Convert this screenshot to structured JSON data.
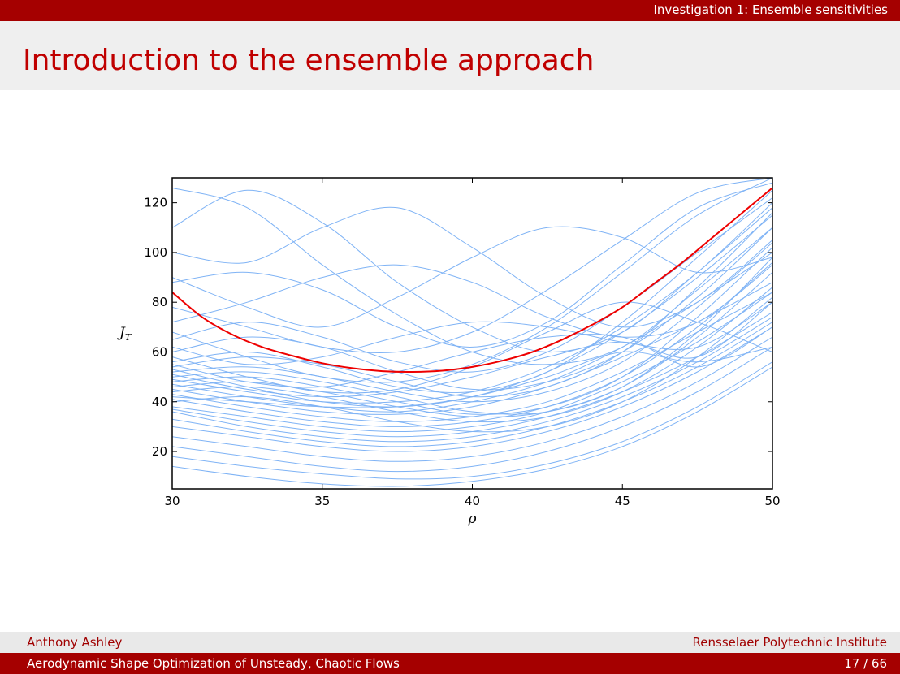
{
  "header": {
    "section": "Investigation 1: Ensemble sensitivities"
  },
  "slide": {
    "title": "Introduction to the ensemble approach"
  },
  "footer": {
    "author": "Anthony Ashley",
    "institution": "Rensselaer Polytechnic Institute",
    "talk_title": "Aerodynamic Shape Optimization of Unsteady, Chaotic Flows",
    "page": "17 / 66"
  },
  "colors": {
    "bar": "#a50000",
    "title": "#c00000",
    "ensemble": "#7fb3f5",
    "mean": "#ee0000"
  },
  "chart_data": {
    "type": "line",
    "xlabel": "ρ",
    "ylabel": "J_T",
    "xlim": [
      30,
      50
    ],
    "ylim": [
      5,
      130
    ],
    "xticks": [
      30,
      35,
      40,
      45,
      50
    ],
    "yticks": [
      20,
      40,
      60,
      80,
      100,
      120
    ],
    "grid": false,
    "series": [
      {
        "role": "ensemble-mean",
        "color": "#ee0000",
        "x": [
          30,
          31,
          32,
          33,
          34,
          35,
          36,
          37,
          38,
          39,
          40,
          41,
          42,
          43,
          44,
          45,
          46,
          47,
          48,
          49,
          50
        ],
        "y": [
          84,
          74,
          67,
          62,
          58.5,
          55.5,
          53.5,
          52.3,
          52,
          52.5,
          54,
          56.5,
          60,
          65,
          71,
          78,
          87,
          96,
          106,
          116,
          126
        ]
      }
    ],
    "ensemble": {
      "color": "#7fb3f5",
      "x": [
        30,
        32.5,
        35,
        37.5,
        40,
        42.5,
        45,
        47.5,
        50
      ],
      "members": [
        [
          126,
          118,
          95,
          75,
          60,
          55,
          62,
          85,
          110
        ],
        [
          110,
          125,
          112,
          88,
          70,
          60,
          68,
          92,
          118
        ],
        [
          100,
          96,
          110,
          118,
          102,
          82,
          70,
          80,
          105
        ],
        [
          90,
          78,
          70,
          82,
          98,
          110,
          106,
          92,
          98
        ],
        [
          88,
          92,
          85,
          70,
          62,
          72,
          95,
          118,
          128
        ],
        [
          78,
          70,
          62,
          60,
          68,
          85,
          105,
          124,
          130
        ],
        [
          72,
          80,
          90,
          95,
          88,
          74,
          66,
          72,
          95
        ],
        [
          68,
          58,
          50,
          48,
          55,
          70,
          92,
          115,
          130
        ],
        [
          65,
          72,
          66,
          56,
          52,
          60,
          78,
          100,
          122
        ],
        [
          62,
          55,
          58,
          66,
          72,
          70,
          64,
          62,
          80
        ],
        [
          60,
          66,
          62,
          52,
          45,
          48,
          60,
          82,
          110
        ],
        [
          58,
          50,
          44,
          45,
          54,
          68,
          80,
          72,
          60
        ],
        [
          56,
          60,
          54,
          46,
          44,
          52,
          72,
          98,
          125
        ],
        [
          55,
          48,
          46,
          52,
          60,
          66,
          66,
          54,
          70
        ],
        [
          54,
          58,
          55,
          48,
          42,
          46,
          60,
          86,
          116
        ],
        [
          53,
          46,
          40,
          38,
          42,
          52,
          68,
          90,
          115
        ],
        [
          52,
          54,
          50,
          44,
          40,
          44,
          56,
          78,
          104
        ],
        [
          51,
          45,
          42,
          44,
          50,
          58,
          64,
          58,
          80
        ],
        [
          50,
          52,
          48,
          42,
          36,
          36,
          46,
          68,
          98
        ],
        [
          49,
          44,
          40,
          40,
          44,
          54,
          70,
          92,
          120
        ],
        [
          48,
          50,
          46,
          40,
          35,
          38,
          50,
          74,
          102
        ],
        [
          47,
          42,
          38,
          36,
          40,
          48,
          62,
          80,
          100
        ],
        [
          46,
          48,
          44,
          38,
          34,
          36,
          46,
          66,
          92
        ],
        [
          45,
          40,
          36,
          35,
          38,
          46,
          58,
          72,
          88
        ],
        [
          44,
          46,
          42,
          36,
          32,
          34,
          44,
          62,
          86
        ],
        [
          43,
          38,
          34,
          32,
          34,
          40,
          52,
          68,
          84
        ],
        [
          42,
          40,
          38,
          38,
          42,
          50,
          60,
          56,
          62
        ],
        [
          41,
          36,
          32,
          30,
          32,
          38,
          50,
          70,
          96
        ],
        [
          40,
          42,
          38,
          32,
          28,
          30,
          40,
          58,
          82
        ],
        [
          38,
          34,
          30,
          28,
          30,
          36,
          48,
          64,
          84
        ],
        [
          37,
          32,
          28,
          26,
          28,
          34,
          44,
          58,
          76
        ],
        [
          36,
          30,
          26,
          24,
          26,
          32,
          42,
          56,
          74
        ],
        [
          33,
          28,
          24,
          22,
          24,
          30,
          40,
          54,
          72
        ],
        [
          30,
          26,
          22,
          20,
          22,
          28,
          38,
          52,
          70
        ],
        [
          26,
          22,
          18,
          16,
          18,
          24,
          34,
          48,
          66
        ],
        [
          22,
          18,
          14,
          12,
          14,
          20,
          30,
          44,
          62
        ],
        [
          18,
          14,
          11,
          9,
          10,
          15,
          24,
          38,
          56
        ],
        [
          14,
          10,
          7,
          6,
          8,
          13,
          22,
          36,
          54
        ]
      ]
    }
  }
}
